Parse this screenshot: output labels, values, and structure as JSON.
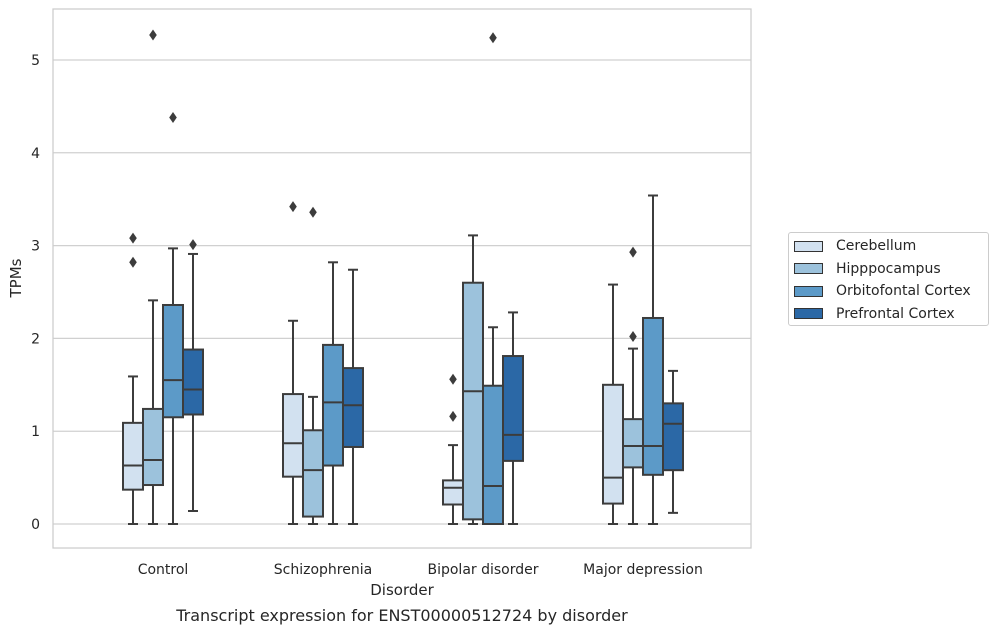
{
  "caption": "Transcript expression for ENST00000512724 by disorder",
  "chart_data": {
    "type": "box",
    "xlabel": "Disorder",
    "ylabel": "TPMs",
    "ylim": [
      -0.25,
      5.55
    ],
    "yticks": [
      0,
      1,
      2,
      3,
      4,
      5
    ],
    "grid": "horizontal",
    "legend_position": "outside-right",
    "categories": [
      "Control",
      "Schizophrenia",
      "Bipolar disorder",
      "Major depression"
    ],
    "series": [
      {
        "name": "Cerebellum",
        "color": "#d2e1f0",
        "boxes": [
          {
            "whislo": 0.0,
            "q1": 0.37,
            "med": 0.63,
            "q3": 1.09,
            "whishi": 1.59,
            "fliers": [
              2.82,
              3.08
            ]
          },
          {
            "whislo": 0.0,
            "q1": 0.51,
            "med": 0.87,
            "q3": 1.4,
            "whishi": 2.19,
            "fliers": [
              3.42
            ]
          },
          {
            "whislo": 0.0,
            "q1": 0.21,
            "med": 0.39,
            "q3": 0.47,
            "whishi": 0.85,
            "fliers": [
              1.16,
              1.56
            ]
          },
          {
            "whislo": 0.0,
            "q1": 0.22,
            "med": 0.5,
            "q3": 1.5,
            "whishi": 2.58,
            "fliers": []
          }
        ]
      },
      {
        "name": "Hipppocampus",
        "color": "#9cc2dc",
        "boxes": [
          {
            "whislo": 0.0,
            "q1": 0.42,
            "med": 0.69,
            "q3": 1.24,
            "whishi": 2.41,
            "fliers": [
              5.27
            ]
          },
          {
            "whislo": 0.0,
            "q1": 0.08,
            "med": 0.58,
            "q3": 1.01,
            "whishi": 1.37,
            "fliers": [
              3.36
            ]
          },
          {
            "whislo": 0.0,
            "q1": 0.05,
            "med": 1.43,
            "q3": 2.6,
            "whishi": 3.11,
            "fliers": []
          },
          {
            "whislo": 0.0,
            "q1": 0.61,
            "med": 0.84,
            "q3": 1.13,
            "whishi": 1.89,
            "fliers": [
              2.02,
              2.93
            ]
          }
        ]
      },
      {
        "name": "Orbitofontal Cortex",
        "color": "#5c9ac8",
        "boxes": [
          {
            "whislo": 0.0,
            "q1": 1.15,
            "med": 1.55,
            "q3": 2.36,
            "whishi": 2.97,
            "fliers": [
              4.38
            ]
          },
          {
            "whislo": 0.0,
            "q1": 0.63,
            "med": 1.31,
            "q3": 1.93,
            "whishi": 2.82,
            "fliers": []
          },
          {
            "whislo": 0.0,
            "q1": 0.0,
            "med": 0.41,
            "q3": 1.49,
            "whishi": 2.12,
            "fliers": [
              5.24
            ]
          },
          {
            "whislo": 0.0,
            "q1": 0.53,
            "med": 0.84,
            "q3": 2.22,
            "whishi": 3.54,
            "fliers": []
          }
        ]
      },
      {
        "name": "Prefrontal Cortex",
        "color": "#2b68a6",
        "boxes": [
          {
            "whislo": 0.14,
            "q1": 1.18,
            "med": 1.45,
            "q3": 1.88,
            "whishi": 2.91,
            "fliers": [
              3.01
            ]
          },
          {
            "whislo": 0.0,
            "q1": 0.83,
            "med": 1.28,
            "q3": 1.68,
            "whishi": 2.74,
            "fliers": []
          },
          {
            "whislo": 0.0,
            "q1": 0.68,
            "med": 0.96,
            "q3": 1.81,
            "whishi": 2.28,
            "fliers": []
          },
          {
            "whislo": 0.12,
            "q1": 0.58,
            "med": 1.08,
            "q3": 1.3,
            "whishi": 1.65,
            "fliers": []
          }
        ]
      }
    ]
  }
}
